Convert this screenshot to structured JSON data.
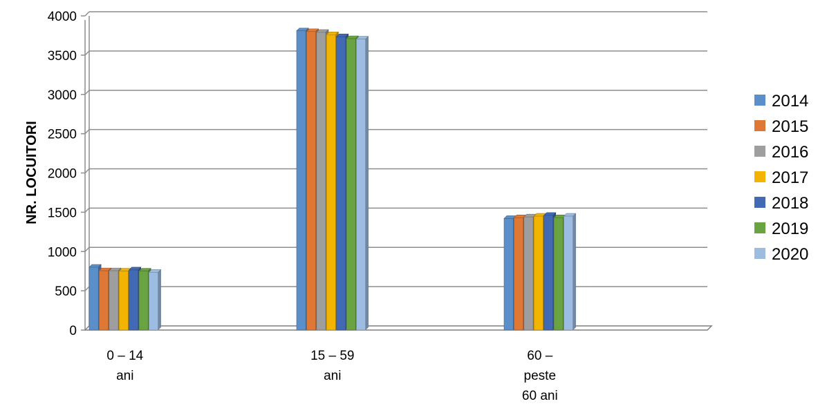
{
  "chart_data": {
    "type": "bar",
    "title": "",
    "xlabel": "",
    "ylabel": "NR. LOCUITORI",
    "ylim": [
      0,
      4000
    ],
    "yticks": [
      0,
      500,
      1000,
      1500,
      2000,
      2500,
      3000,
      3500,
      4000
    ],
    "grid": true,
    "legend_position": "right",
    "categories": [
      [
        "0 – 14",
        "ani"
      ],
      [
        "15 – 59",
        "ani"
      ],
      [
        "60 –",
        "peste",
        "60 ani"
      ]
    ],
    "series": [
      {
        "name": "2014",
        "color": "#5B8FC9",
        "values": [
          800,
          3810,
          1420
        ]
      },
      {
        "name": "2015",
        "color": "#E07835",
        "values": [
          755,
          3800,
          1430
        ]
      },
      {
        "name": "2016",
        "color": "#9E9E9E",
        "values": [
          755,
          3790,
          1440
        ]
      },
      {
        "name": "2017",
        "color": "#F2B400",
        "values": [
          750,
          3760,
          1450
        ]
      },
      {
        "name": "2018",
        "color": "#4169B4",
        "values": [
          765,
          3735,
          1460
        ]
      },
      {
        "name": "2019",
        "color": "#6AA342",
        "values": [
          750,
          3710,
          1430
        ]
      },
      {
        "name": "2020",
        "color": "#9DBCE2",
        "values": [
          735,
          3705,
          1450
        ]
      }
    ]
  }
}
